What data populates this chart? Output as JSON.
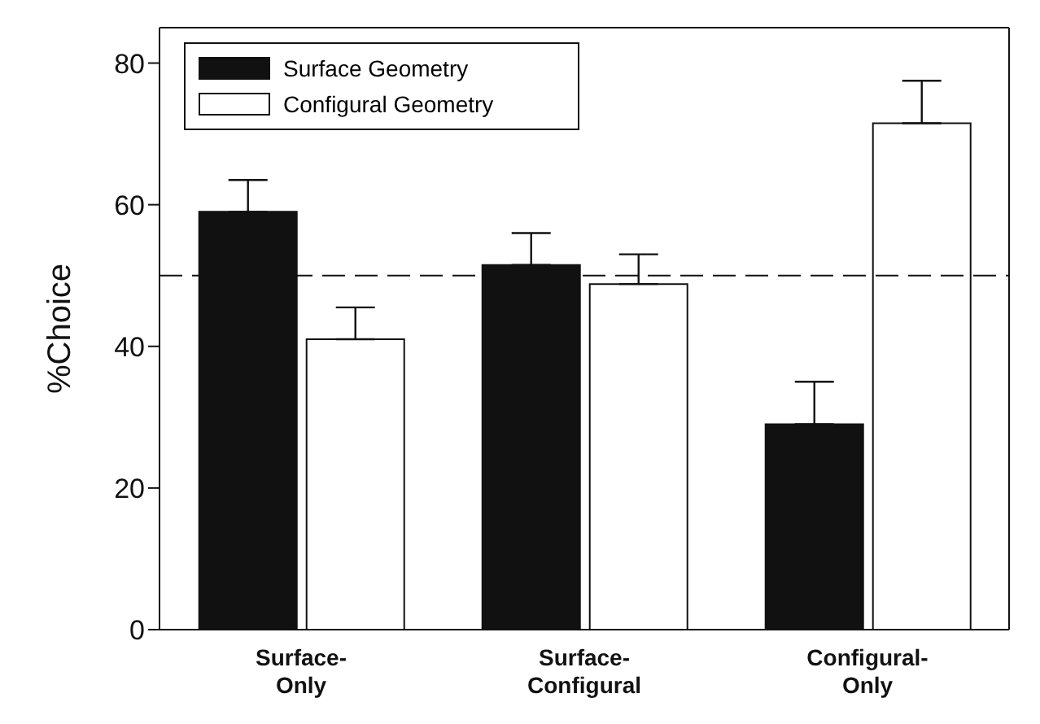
{
  "chart_data": {
    "type": "bar",
    "ylabel": "%Choice",
    "categories": [
      "Surface-Only",
      "Surface-Configural",
      "Configural-Only"
    ],
    "series": [
      {
        "name": "Surface Geometry",
        "color": "#111111",
        "values": [
          59,
          51.5,
          29
        ],
        "errors": [
          [
            59,
            63.5
          ],
          [
            51.5,
            56
          ],
          [
            29,
            35
          ]
        ]
      },
      {
        "name": "Configural Geometry",
        "color": "#ffffff",
        "values": [
          41,
          48.8,
          71.5
        ],
        "errors": [
          [
            41,
            45.5
          ],
          [
            48.8,
            53
          ],
          [
            71.5,
            77.5
          ]
        ]
      }
    ],
    "ylim": [
      0,
      85
    ],
    "yticks": [
      0,
      20,
      40,
      60,
      80
    ],
    "grid": false,
    "legend": "top left",
    "ref_lines": [
      {
        "axis": "y",
        "value": 50,
        "color": "#111111",
        "line_style": "dashed"
      }
    ]
  }
}
